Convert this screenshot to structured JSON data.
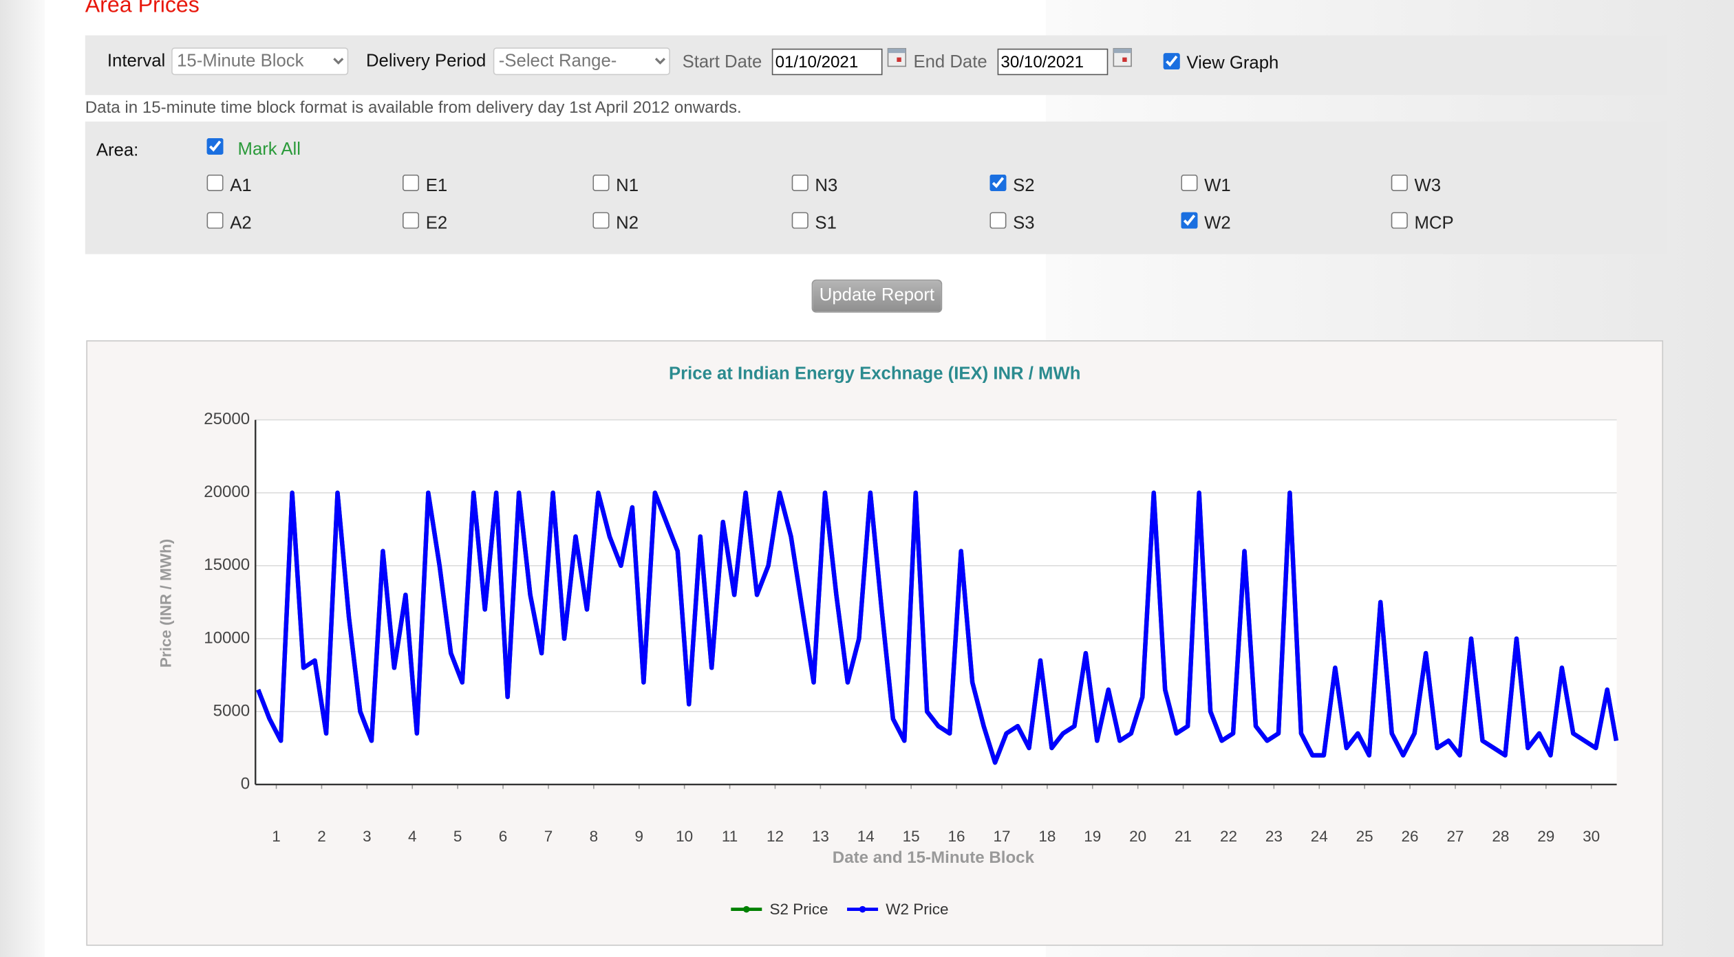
{
  "header": {
    "title": "Area Prices"
  },
  "filters": {
    "interval_label": "Interval",
    "interval_value": "15-Minute Block",
    "period_label": "Delivery Period",
    "period_value": "-Select Range-",
    "start_label": "Start Date",
    "start_value": "01/10/2021",
    "end_label": "End Date",
    "end_value": "30/10/2021",
    "view_graph_label": "View Graph",
    "view_graph_checked": true
  },
  "note": "Data in 15-minute time block format is available from delivery day 1st April 2012 onwards.",
  "area": {
    "label": "Area:",
    "mark_all": {
      "label": "Mark All",
      "checked": true
    },
    "options": [
      [
        {
          "label": "A1",
          "checked": false
        },
        {
          "label": "E1",
          "checked": false
        },
        {
          "label": "N1",
          "checked": false
        },
        {
          "label": "N3",
          "checked": false
        },
        {
          "label": "S2",
          "checked": true
        },
        {
          "label": "W1",
          "checked": false
        },
        {
          "label": "W3",
          "checked": false
        }
      ],
      [
        {
          "label": "A2",
          "checked": false
        },
        {
          "label": "E2",
          "checked": false
        },
        {
          "label": "N2",
          "checked": false
        },
        {
          "label": "S1",
          "checked": false
        },
        {
          "label": "S3",
          "checked": false
        },
        {
          "label": "W2",
          "checked": true
        },
        {
          "label": "MCP",
          "checked": false
        }
      ]
    ]
  },
  "button": "Update Report",
  "chart_data": {
    "type": "line",
    "title": "Price at Indian Energy Exchnage (IEX) INR / MWh",
    "x_label": "Date and 15-Minute Block",
    "y_label": "Price (INR / MWh)",
    "x": [
      0.6,
      0.85,
      1.1,
      1.35,
      1.6,
      1.85,
      2.1,
      2.35,
      2.6,
      2.85,
      3.1,
      3.35,
      3.6,
      3.85,
      4.1,
      4.35,
      4.6,
      4.85,
      5.1,
      5.35,
      5.6,
      5.85,
      6.1,
      6.35,
      6.6,
      6.85,
      7.1,
      7.35,
      7.6,
      7.85,
      8.1,
      8.35,
      8.6,
      8.85,
      9.1,
      9.35,
      9.6,
      9.85,
      10.1,
      10.35,
      10.6,
      10.85,
      11.1,
      11.35,
      11.6,
      11.85,
      12.1,
      12.35,
      12.6,
      12.85,
      13.1,
      13.35,
      13.6,
      13.85,
      14.1,
      14.35,
      14.6,
      14.85,
      15.1,
      15.35,
      15.6,
      15.85,
      16.1,
      16.35,
      16.6,
      16.85,
      17.1,
      17.35,
      17.6,
      17.85,
      18.1,
      18.35,
      18.6,
      18.85,
      19.1,
      19.35,
      19.6,
      19.85,
      20.1,
      20.35,
      20.6,
      20.85,
      21.1,
      21.35,
      21.6,
      21.85,
      22.1,
      22.35,
      22.6,
      22.85,
      23.1,
      23.35,
      23.6,
      23.85,
      24.1,
      24.35,
      24.6,
      24.85,
      25.1,
      25.35,
      25.6,
      25.85,
      26.1,
      26.35,
      26.6,
      26.85,
      27.1,
      27.35,
      27.6,
      27.85,
      28.1,
      28.35,
      28.6,
      28.85,
      29.1,
      29.35,
      29.6,
      29.85,
      30.1,
      30.35,
      30.55
    ],
    "series": [
      {
        "name": "S2 Price",
        "color": "#008000",
        "values": [
          6500,
          4500,
          3000,
          20000,
          8000,
          8500,
          3500,
          20000,
          11500,
          5000,
          3000,
          16000,
          8000,
          13000,
          3500,
          20000,
          15000,
          9000,
          7000,
          20000,
          12000,
          20000,
          6000,
          20000,
          13000,
          9000,
          20000,
          10000,
          17000,
          12000,
          20000,
          17000,
          15000,
          19000,
          7000,
          20000,
          18000,
          16000,
          5500,
          17000,
          8000,
          18000,
          13000,
          20000,
          13000,
          15000,
          20000,
          17000,
          12000,
          7000,
          20000,
          13000,
          7000,
          10000,
          20000,
          12000,
          4500,
          3000,
          20000,
          5000,
          4000,
          3500,
          16000,
          7000,
          4000,
          1500,
          3500,
          4000,
          2500,
          8500,
          2500,
          3500,
          4000,
          9000,
          3000,
          6500,
          3000,
          3500,
          6000,
          20000,
          6500,
          3500,
          4000,
          20000,
          5000,
          3000,
          3500,
          16000,
          4000,
          3000,
          3500,
          20000,
          3500,
          2000,
          2000,
          8000,
          2500,
          3500,
          2000,
          12500,
          3500,
          2000,
          3500,
          9000,
          2500,
          3000,
          2000,
          10000,
          3000,
          2500,
          2000,
          10000,
          2500,
          3500,
          2000,
          8000,
          3500,
          3000,
          2500,
          6500,
          3000
        ]
      },
      {
        "name": "W2 Price",
        "color": "#0000ff",
        "values": [
          6500,
          4500,
          3000,
          20000,
          8000,
          8500,
          3500,
          20000,
          11500,
          5000,
          3000,
          16000,
          8000,
          13000,
          3500,
          20000,
          15000,
          9000,
          7000,
          20000,
          12000,
          20000,
          6000,
          20000,
          13000,
          9000,
          20000,
          10000,
          17000,
          12000,
          20000,
          17000,
          15000,
          19000,
          7000,
          20000,
          18000,
          16000,
          5500,
          17000,
          8000,
          18000,
          13000,
          20000,
          13000,
          15000,
          20000,
          17000,
          12000,
          7000,
          20000,
          13000,
          7000,
          10000,
          20000,
          12000,
          4500,
          3000,
          20000,
          5000,
          4000,
          3500,
          16000,
          7000,
          4000,
          1500,
          3500,
          4000,
          2500,
          8500,
          2500,
          3500,
          4000,
          9000,
          3000,
          6500,
          3000,
          3500,
          6000,
          20000,
          6500,
          3500,
          4000,
          20000,
          5000,
          3000,
          3500,
          16000,
          4000,
          3000,
          3500,
          20000,
          3500,
          2000,
          2000,
          8000,
          2500,
          3500,
          2000,
          12500,
          3500,
          2000,
          3500,
          9000,
          2500,
          3000,
          2000,
          10000,
          3000,
          2500,
          2000,
          10000,
          2500,
          3500,
          2000,
          8000,
          3500,
          3000,
          2500,
          6500,
          3000
        ]
      }
    ],
    "xlim": [
      0.54,
      30.56
    ],
    "xticks": [
      1,
      2,
      3,
      4,
      5,
      6,
      7,
      8,
      9,
      10,
      11,
      12,
      13,
      14,
      15,
      16,
      17,
      18,
      19,
      20,
      21,
      22,
      23,
      24,
      25,
      26,
      27,
      28,
      29,
      30
    ],
    "ylim": [
      0,
      25000
    ],
    "yticks": [
      0,
      5000,
      10000,
      15000,
      20000,
      25000
    ],
    "grid": true,
    "legend": "bottom"
  }
}
